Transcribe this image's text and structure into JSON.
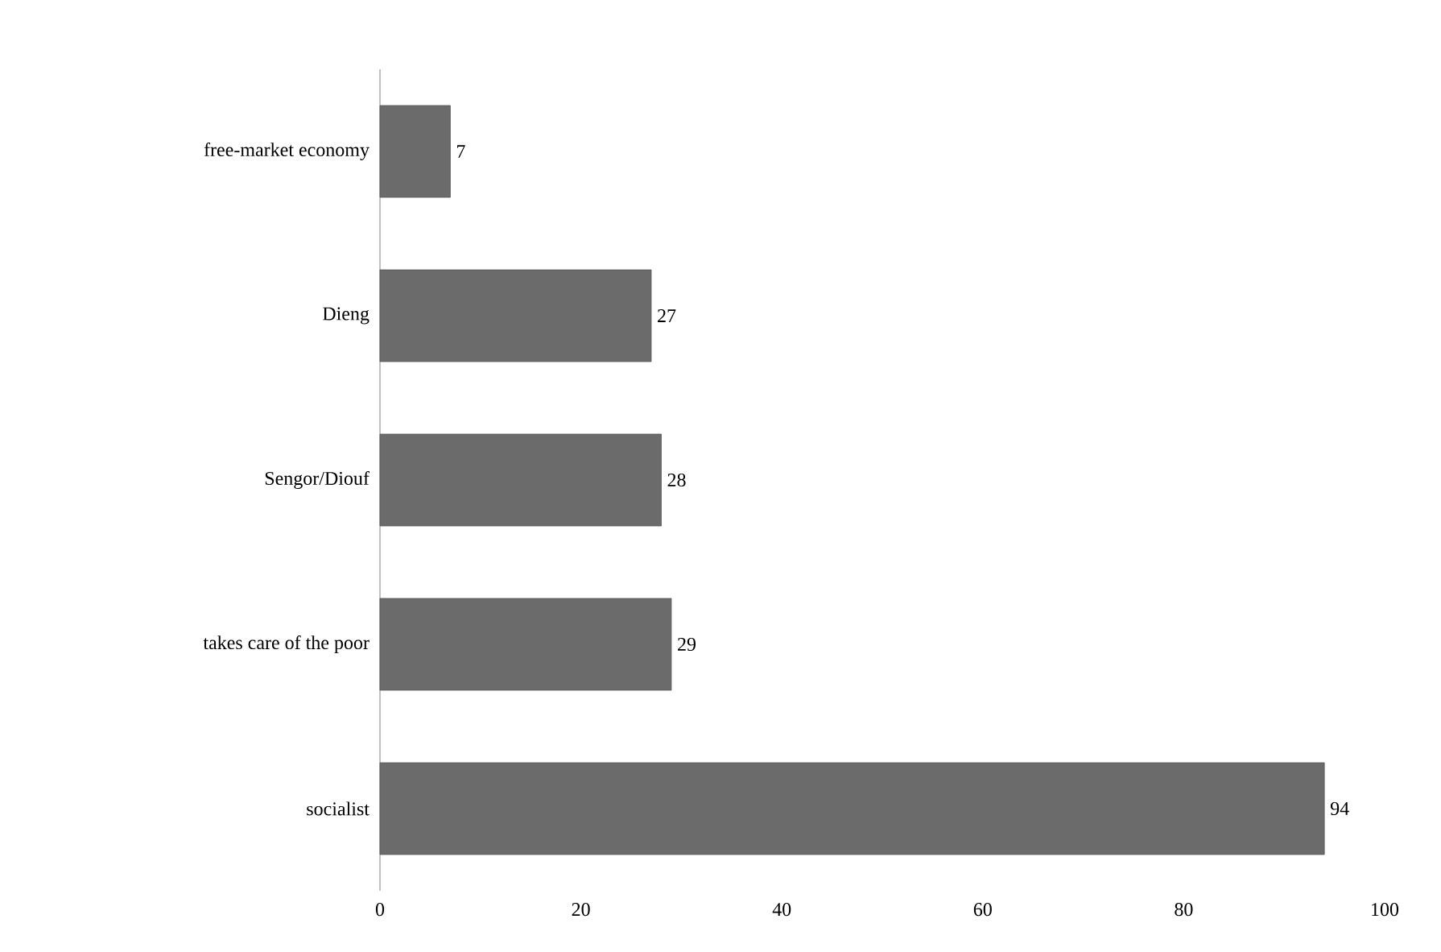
{
  "chart_data": {
    "type": "bar",
    "orientation": "horizontal",
    "categories": [
      "free-market economy",
      "Dieng",
      "Sengor/Diouf",
      "takes care of the poor",
      "socialist"
    ],
    "values": [
      7,
      27,
      28,
      29,
      94
    ],
    "color": "#6b6b6b",
    "xlim": [
      0,
      100
    ],
    "xticks": [
      0,
      20,
      40,
      60,
      80,
      100
    ],
    "data_labels": true
  }
}
